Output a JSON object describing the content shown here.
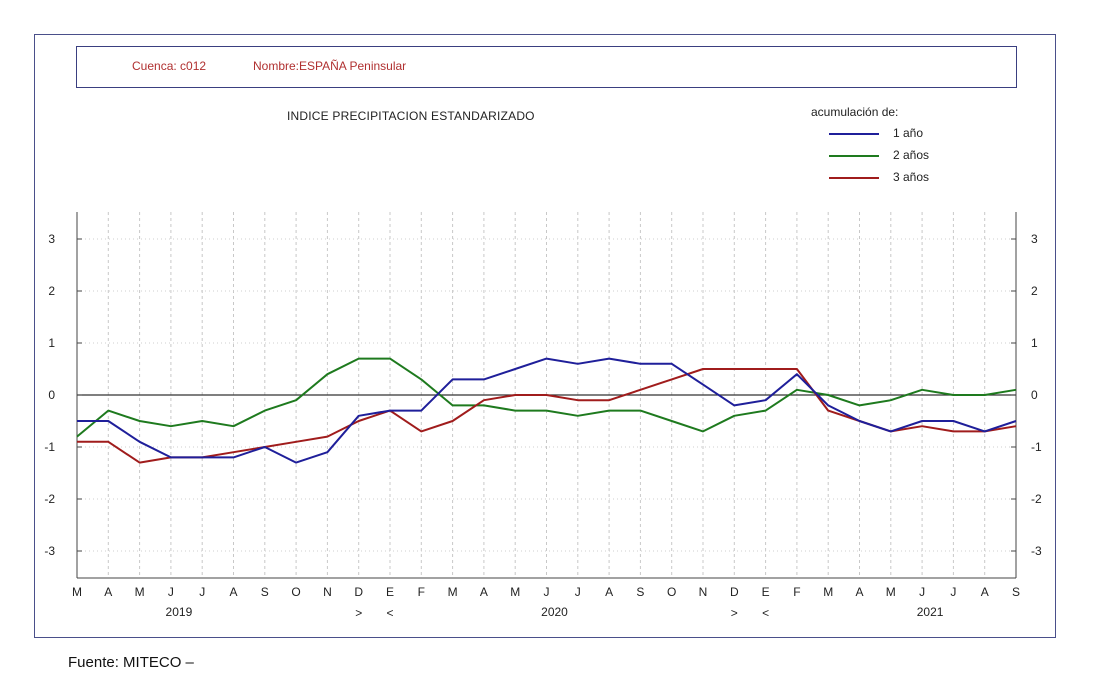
{
  "header": {
    "cuenca": "Cuenca: c012",
    "nombre": "Nombre:ESPAÑA Peninsular"
  },
  "title": "INDICE  PRECIPITACION ESTANDARIZADO",
  "legend": {
    "title": "acumulación de:",
    "items": [
      {
        "label": "1 año",
        "color": "#1f1f9a"
      },
      {
        "label": "2 años",
        "color": "#1e7a1e"
      },
      {
        "label": "3 años",
        "color": "#a01c1c"
      }
    ]
  },
  "chart_data": {
    "type": "line",
    "x": [
      "M",
      "A",
      "M",
      "J",
      "J",
      "A",
      "S",
      "O",
      "N",
      "D",
      "E",
      "F",
      "M",
      "A",
      "M",
      "J",
      "J",
      "A",
      "S",
      "O",
      "N",
      "D",
      "E",
      "F",
      "M",
      "A",
      "M",
      "J",
      "J",
      "A",
      "S"
    ],
    "year_labels": [
      {
        "label": "2019",
        "index": 3
      },
      {
        "label": "2020",
        "index": 15
      },
      {
        "label": "2021",
        "index": 27
      }
    ],
    "markers": [
      {
        "label": ">",
        "index": 9
      },
      {
        "label": "<",
        "index": 10
      },
      {
        "label": ">",
        "index": 21
      },
      {
        "label": "<",
        "index": 22
      }
    ],
    "yticks": [
      3,
      2,
      1,
      0,
      -1,
      -2,
      -3
    ],
    "ylim": [
      -3.5,
      3.5
    ],
    "grid": true,
    "legend_position": "top-right",
    "series": [
      {
        "name": "1 año",
        "color": "#1f1f9a",
        "values": [
          -0.5,
          -0.5,
          -0.9,
          -1.2,
          -1.2,
          -1.2,
          -1.0,
          -1.3,
          -1.1,
          -0.4,
          -0.3,
          -0.3,
          0.3,
          0.3,
          0.5,
          0.7,
          0.6,
          0.7,
          0.6,
          0.6,
          0.2,
          -0.2,
          -0.1,
          0.4,
          -0.2,
          -0.5,
          -0.7,
          -0.5,
          -0.5,
          -0.7,
          -0.5
        ]
      },
      {
        "name": "2 años",
        "color": "#1e7a1e",
        "values": [
          -0.8,
          -0.3,
          -0.5,
          -0.6,
          -0.5,
          -0.6,
          -0.3,
          -0.1,
          0.4,
          0.7,
          0.7,
          0.3,
          -0.2,
          -0.2,
          -0.3,
          -0.3,
          -0.4,
          -0.3,
          -0.3,
          -0.5,
          -0.7,
          -0.4,
          -0.3,
          0.1,
          0.0,
          -0.2,
          -0.1,
          0.1,
          0.0,
          0.0,
          0.1
        ]
      },
      {
        "name": "3 años",
        "color": "#a01c1c",
        "values": [
          -0.9,
          -0.9,
          -1.3,
          -1.2,
          -1.2,
          -1.1,
          -1.0,
          -0.9,
          -0.8,
          -0.5,
          -0.3,
          -0.7,
          -0.5,
          -0.1,
          0.0,
          0.0,
          -0.1,
          -0.1,
          0.1,
          0.3,
          0.5,
          0.5,
          0.5,
          0.5,
          -0.3,
          -0.5,
          -0.7,
          -0.6,
          -0.7,
          -0.7,
          -0.6
        ]
      }
    ]
  },
  "source": "Fuente: MITECO –"
}
